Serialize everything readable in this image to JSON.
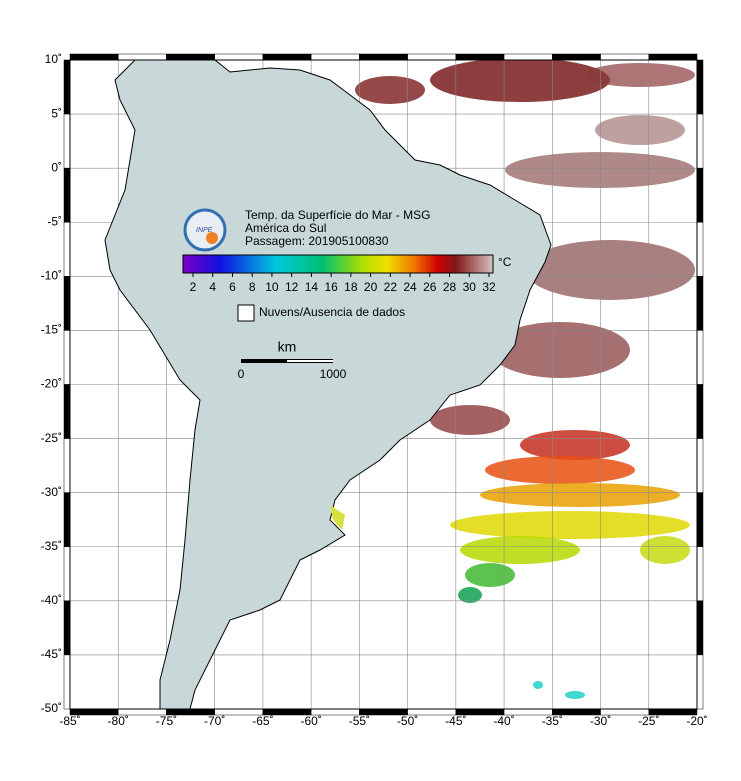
{
  "header": {
    "title": "Temp. da Superfície do Mar - MSG",
    "region": "América do Sul",
    "pass": "Passagem: 201905100830",
    "logo": "INPE"
  },
  "colorbar": {
    "ticks": [
      "2",
      "4",
      "6",
      "8",
      "10",
      "12",
      "14",
      "16",
      "18",
      "20",
      "22",
      "24",
      "26",
      "28",
      "30",
      "32"
    ],
    "unit": "°C"
  },
  "legend": "Nuvens/Ausencia de dados",
  "scale": {
    "unit": "km",
    "start": "0",
    "end": "1000"
  },
  "lon_ticks": [
    "-85˚",
    "-80˚",
    "-75˚",
    "-70˚",
    "-65˚",
    "-60˚",
    "-55˚",
    "-50˚",
    "-45˚",
    "-40˚",
    "-35˚",
    "-30˚",
    "-25˚",
    "-20˚"
  ],
  "lat_ticks": [
    "10˚",
    "5˚",
    "0˚",
    "-5˚",
    "-10˚",
    "-15˚",
    "-20˚",
    "-25˚",
    "-30˚",
    "-35˚",
    "-40˚",
    "-45˚",
    "-50˚"
  ]
}
